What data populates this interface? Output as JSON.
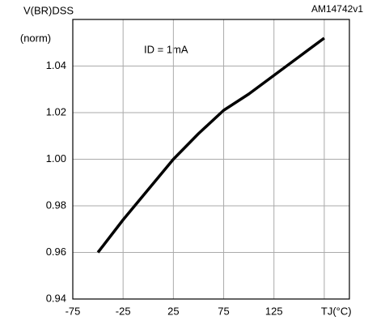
{
  "chart_data": {
    "type": "line",
    "y_label": "V(BR)DSS",
    "y_unit": "(norm)",
    "annotation": "ID = 1mA",
    "code": "AM14742v1",
    "x": [
      -50,
      -25,
      0,
      25,
      50,
      75,
      100,
      125,
      150,
      175
    ],
    "series": [
      {
        "name": "V(BR)DSS",
        "color": "#000000",
        "values": [
          0.96,
          0.974,
          0.987,
          1.0,
          1.011,
          1.021,
          1.028,
          1.036,
          1.044,
          1.052
        ]
      }
    ],
    "xlim": [
      -75,
      200
    ],
    "xticks": [
      -75,
      -25,
      25,
      75,
      125,
      {
        "value": 175,
        "label": "TJ(°C)"
      }
    ],
    "ylim": [
      0.94,
      1.06
    ],
    "yticks": [
      0.94,
      0.96,
      0.98,
      {
        "value": 1,
        "label": "1.00"
      },
      1.02,
      1.04
    ],
    "grid": true
  }
}
